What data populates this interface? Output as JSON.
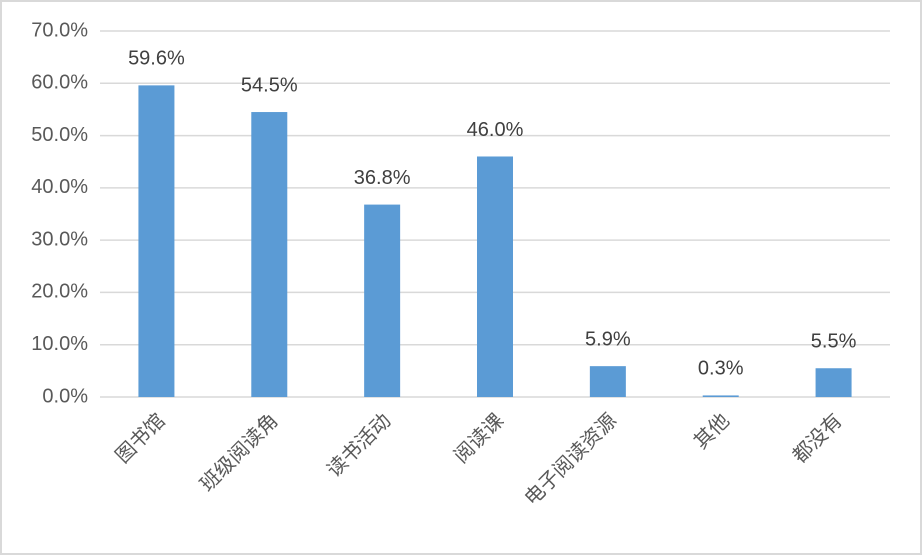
{
  "chart_data": {
    "type": "bar",
    "categories": [
      "图书馆",
      "班级阅读角",
      "读书活动",
      "阅读课",
      "电子阅读资源",
      "其他",
      "都没有"
    ],
    "values": [
      59.6,
      54.5,
      36.8,
      46.0,
      5.9,
      0.3,
      5.5
    ],
    "value_labels": [
      "59.6%",
      "54.5%",
      "36.8%",
      "46.0%",
      "5.9%",
      "0.3%",
      "5.5%"
    ],
    "color": "#5b9bd5",
    "ylim": [
      0,
      70
    ],
    "yticks": [
      {
        "value": 0,
        "label": "0.0%"
      },
      {
        "value": 10,
        "label": "10.0%"
      },
      {
        "value": 20,
        "label": "20.0%"
      },
      {
        "value": 30,
        "label": "30.0%"
      },
      {
        "value": 40,
        "label": "40.0%"
      },
      {
        "value": 50,
        "label": "50.0%"
      },
      {
        "value": 60,
        "label": "60.0%"
      },
      {
        "value": 70,
        "label": "70.0%"
      }
    ],
    "grid": true
  }
}
